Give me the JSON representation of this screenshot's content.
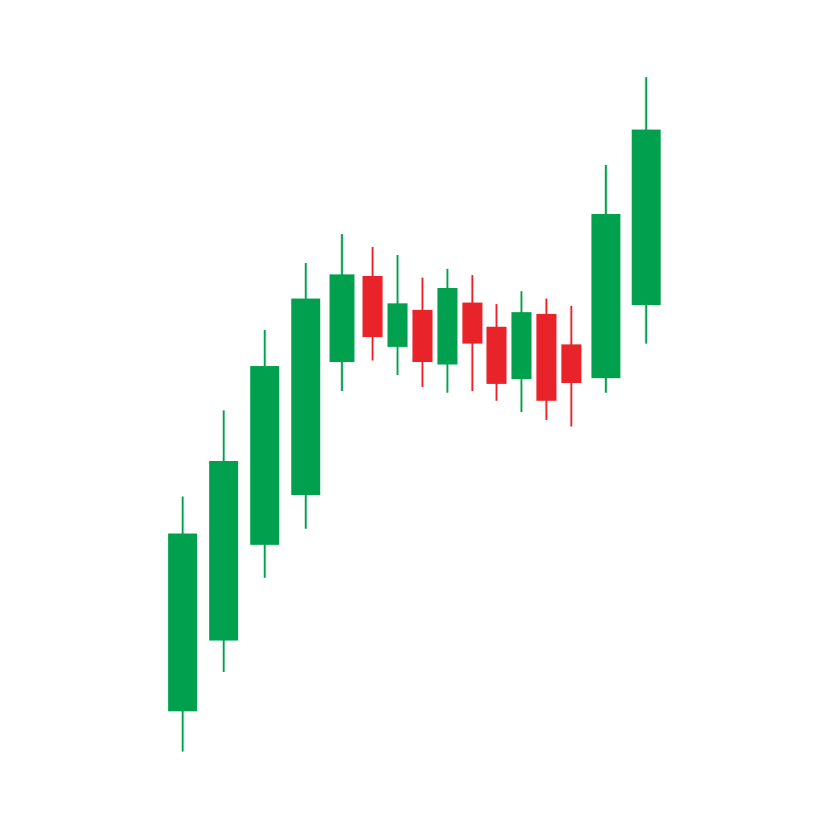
{
  "chart_data": {
    "type": "candlestick",
    "categories": [
      null,
      null,
      null,
      null,
      null,
      null,
      null,
      null,
      null,
      null,
      null,
      null,
      null,
      null,
      null,
      null
    ],
    "open": [
      140,
      228,
      347,
      409,
      574,
      681,
      593,
      639,
      571,
      648,
      618,
      553,
      634,
      596,
      554,
      645
    ],
    "high": [
      407,
      514,
      614,
      697,
      733,
      717,
      707,
      679,
      690,
      682,
      646,
      662,
      653,
      644,
      819,
      928
    ],
    "low": [
      90,
      189,
      306,
      367,
      538,
      576,
      558,
      543,
      536,
      538,
      526,
      512,
      502,
      494,
      536,
      597
    ],
    "close": [
      361,
      451,
      569,
      653,
      683,
      605,
      647,
      574,
      666,
      597,
      547,
      636,
      526,
      548,
      758,
      863
    ],
    "up_color": "#00a04f",
    "down_color": "#e8232a",
    "ylim": [
      0,
      1024
    ]
  }
}
